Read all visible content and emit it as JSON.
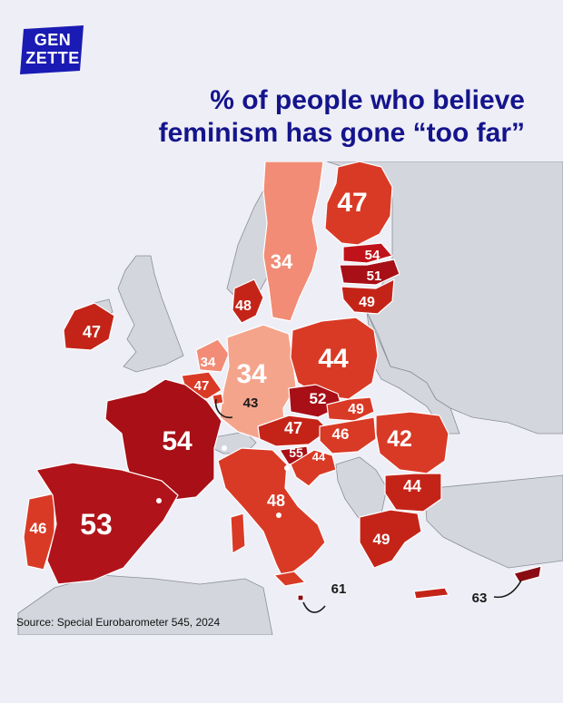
{
  "brand": {
    "line1": "GEN",
    "line2": "ZETTE",
    "color": "#1a1ab4"
  },
  "title": {
    "line1": "% of people who believe",
    "line2": "feminism has gone “too far”"
  },
  "source": "Source: Special Eurobarometer 545, 2024",
  "colors": {
    "background": "#eeeef6",
    "non_eu": "#d3d6dc",
    "title": "#14148c"
  },
  "countries": [
    {
      "name": "Finland",
      "value": "47"
    },
    {
      "name": "Sweden",
      "value": "34"
    },
    {
      "name": "Estonia",
      "value": "54"
    },
    {
      "name": "Latvia",
      "value": "51"
    },
    {
      "name": "Lithuania",
      "value": "49"
    },
    {
      "name": "Denmark",
      "value": "48"
    },
    {
      "name": "Ireland",
      "value": "47"
    },
    {
      "name": "Netherlands",
      "value": "34"
    },
    {
      "name": "Belgium",
      "value": "47"
    },
    {
      "name": "Germany",
      "value": "34"
    },
    {
      "name": "Luxembourg",
      "value": "43"
    },
    {
      "name": "Poland",
      "value": "44"
    },
    {
      "name": "Czechia",
      "value": "52"
    },
    {
      "name": "Slovakia",
      "value": "49"
    },
    {
      "name": "Austria",
      "value": "47"
    },
    {
      "name": "Hungary",
      "value": "46"
    },
    {
      "name": "Slovenia",
      "value": "55"
    },
    {
      "name": "Croatia",
      "value": "44"
    },
    {
      "name": "Romania",
      "value": "42"
    },
    {
      "name": "Bulgaria",
      "value": "44"
    },
    {
      "name": "France",
      "value": "54"
    },
    {
      "name": "Italy",
      "value": "48"
    },
    {
      "name": "Portugal",
      "value": "46"
    },
    {
      "name": "Spain",
      "value": "53"
    },
    {
      "name": "Greece",
      "value": "49"
    },
    {
      "name": "Malta",
      "value": "61"
    },
    {
      "name": "Cyprus",
      "value": "63"
    }
  ]
}
